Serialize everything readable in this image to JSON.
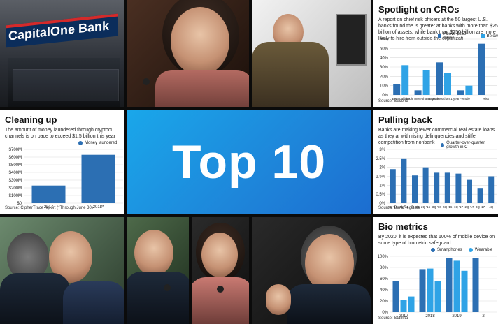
{
  "hero": {
    "title": "Top 10"
  },
  "tiles": {
    "capital_one": {
      "sign_text": "CapitalOne Bank"
    },
    "cros": {
      "title": "Spotlight on CROs",
      "subtitle": "A report on chief risk officers at the 50 largest U.S. banks found the is greater at banks with more than $250 billion of assets, while bank than $250 billion are more likely to hire from outside the organizati",
      "legend": [
        "Above $250 billion",
        "Below"
      ],
      "source": "Source: Second",
      "chart_data": {
        "type": "bar",
        "categories": [
          "External hire",
          "In role more than 5 years",
          "In role less than 1 year",
          "Female",
          "Risk"
        ],
        "series": [
          {
            "name": "Above $250 billion",
            "values": [
              12,
              5,
              35,
              5,
              55
            ]
          },
          {
            "name": "Below",
            "values": [
              32,
              27,
              24,
              10,
              0
            ]
          }
        ],
        "ylim": [
          0,
          60
        ],
        "yticks": [
          "60%",
          "50%",
          "40%",
          "30%",
          "20%",
          "10%",
          "0%"
        ]
      }
    },
    "cleaning_up": {
      "title": "Cleaning up",
      "subtitle": "The amount of money laundered through cryptocu channels is on pace to exceed $1.5 billion this year",
      "legend": "Money laundered",
      "source": "Source: CipherTrace report (*Through June 30)",
      "chart_data": {
        "type": "bar",
        "categories": [
          "2017",
          "2018*"
        ],
        "values": [
          230,
          630
        ],
        "ylim": [
          0,
          700
        ],
        "yticks": [
          "$700M",
          "$600M",
          "$500M",
          "$400M",
          "$300M",
          "$200M",
          "$100M",
          "$0"
        ]
      }
    },
    "pulling_back": {
      "title": "Pulling back",
      "subtitle": "Banks are making fewer commercial real estate loans as they ar with rising delinquencies and stiffer competition from nonbank",
      "legend": "Quarter-over-quarter growth in C",
      "source": "Source: BankRegData",
      "chart_data": {
        "type": "bar",
        "categories": [
          "3Q '15",
          "4Q '15",
          "1Q '16",
          "2Q '16",
          "3Q '16",
          "4Q '16",
          "1Q '17",
          "2Q '17",
          "3Q '17",
          "4Q"
        ],
        "values": [
          1.9,
          2.5,
          1.55,
          2.0,
          1.7,
          1.7,
          1.65,
          1.3,
          0.85,
          1.5
        ],
        "ylim": [
          0,
          3
        ],
        "yticks": [
          "3%",
          "2.5%",
          "2%",
          "1.5%",
          "1%",
          "0.5%",
          "0%"
        ]
      }
    },
    "bio_metrics": {
      "title": "Bio metrics",
      "subtitle": "By 2020, it is expected that 100% of mobile device on some type of biometric safeguard",
      "legend": [
        "Smartphones",
        "Wearable"
      ],
      "source": "Source: Statista",
      "chart_data": {
        "type": "bar",
        "categories": [
          "2017",
          "2018",
          "2019",
          "2"
        ],
        "series": [
          {
            "name": "Smartphones",
            "values": [
              55,
              77,
              97,
              97
            ]
          },
          {
            "name": "Wearable",
            "values": [
              22,
              78,
              92,
              0
            ]
          },
          {
            "name": "",
            "values": [
              28,
              56,
              74,
              0
            ]
          }
        ],
        "ylim": [
          0,
          100
        ],
        "yticks": [
          "100%",
          "80%",
          "60%",
          "40%",
          "20%",
          "0%"
        ]
      }
    }
  },
  "colors": {
    "dark_blue": "#2c6fb3",
    "light_blue": "#2fa3e6",
    "top10_bg": "#1e84d9"
  }
}
